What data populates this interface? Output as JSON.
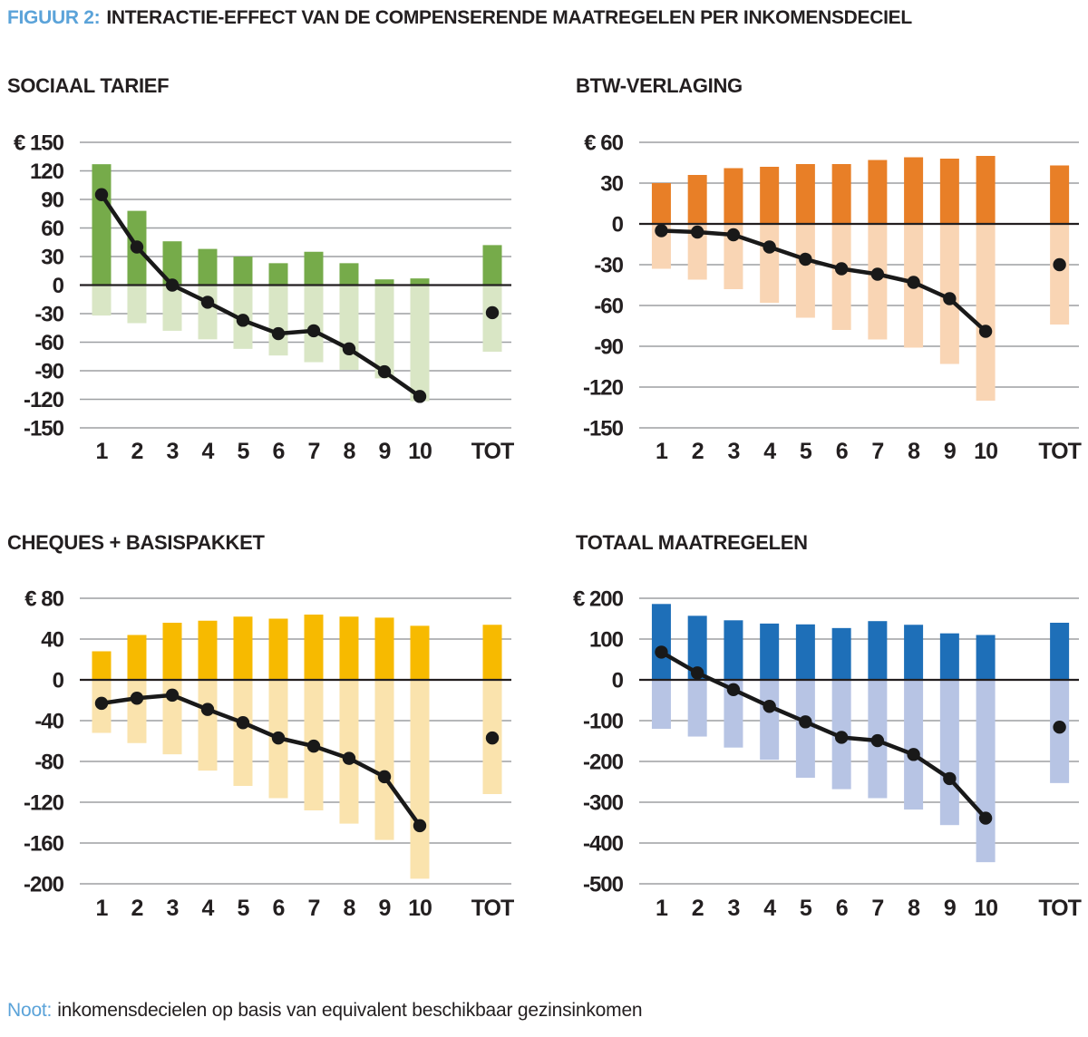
{
  "figure": {
    "label": "FIGUUR 2:",
    "title": "INTERACTIE-EFFECT VAN DE COMPENSERENDE MAATREGELEN PER INKOMENSDECIEL",
    "note": {
      "label": "Noot:",
      "text": "inkomensdecielen op basis van equivalent beschikbaar gezinsinkomen"
    }
  },
  "colors": {
    "accent_blue_text": "#5ba3d9",
    "text_dark": "#231f20",
    "gridline": "#9d9fa2",
    "zero_line": "#231f20",
    "line_and_dots": "#191919"
  },
  "chart_data": [
    {
      "type": "bar",
      "title": "SOCIAAL TARIEF",
      "currency_prefix": "€",
      "categories": [
        "1",
        "2",
        "3",
        "4",
        "5",
        "6",
        "7",
        "8",
        "9",
        "10",
        "TOT"
      ],
      "ylim": [
        -150,
        150
      ],
      "ytick_step": 30,
      "yticks": [
        150,
        120,
        90,
        60,
        30,
        0,
        -30,
        -60,
        -90,
        -120,
        -150
      ],
      "grid": true,
      "legend": false,
      "colors": {
        "positive": "#76ab4a",
        "negative": "#d9e6c5"
      },
      "series": [
        {
          "id": "bars-positive",
          "type": "bar",
          "values": [
            127,
            78,
            46,
            38,
            30,
            23,
            35,
            23,
            6,
            7,
            42
          ]
        },
        {
          "id": "bars-negative",
          "type": "bar",
          "values": [
            -32,
            -40,
            -48,
            -57,
            -67,
            -74,
            -81,
            -89,
            -98,
            -122,
            -70
          ]
        },
        {
          "id": "line-dots",
          "type": "line",
          "values": [
            95,
            40,
            0,
            -18,
            -37,
            -51,
            -48,
            -67,
            -91,
            -117,
            -29
          ]
        }
      ]
    },
    {
      "type": "bar",
      "title": "BTW-VERLAGING",
      "currency_prefix": "€",
      "categories": [
        "1",
        "2",
        "3",
        "4",
        "5",
        "6",
        "7",
        "8",
        "9",
        "10",
        "TOT"
      ],
      "ylim": [
        -150,
        60
      ],
      "ytick_step": 30,
      "yticks": [
        60,
        30,
        0,
        -30,
        -60,
        -90,
        -120,
        -150
      ],
      "grid": true,
      "legend": false,
      "colors": {
        "positive": "#e87f27",
        "negative": "#f9d5b4"
      },
      "series": [
        {
          "id": "bars-positive",
          "type": "bar",
          "values": [
            30,
            36,
            41,
            42,
            44,
            44,
            47,
            49,
            48,
            50,
            43
          ]
        },
        {
          "id": "bars-negative",
          "type": "bar",
          "values": [
            -33,
            -41,
            -48,
            -58,
            -69,
            -78,
            -85,
            -91,
            -103,
            -130,
            -74
          ]
        },
        {
          "id": "line-dots",
          "type": "line",
          "values": [
            -5,
            -6,
            -8,
            -17,
            -26,
            -33,
            -37,
            -43,
            -55,
            -79,
            -30
          ]
        }
      ]
    },
    {
      "type": "bar",
      "title": "CHEQUES + BASISPAKKET",
      "currency_prefix": "€",
      "categories": [
        "1",
        "2",
        "3",
        "4",
        "5",
        "6",
        "7",
        "8",
        "9",
        "10",
        "TOT"
      ],
      "ylim": [
        -200,
        80
      ],
      "ytick_step": 40,
      "yticks": [
        80,
        40,
        0,
        -40,
        -80,
        -120,
        -160,
        -200
      ],
      "grid": true,
      "legend": false,
      "colors": {
        "positive": "#f7ba00",
        "negative": "#fae3ad"
      },
      "series": [
        {
          "id": "bars-positive",
          "type": "bar",
          "values": [
            28,
            44,
            56,
            58,
            62,
            60,
            64,
            62,
            61,
            53,
            54
          ]
        },
        {
          "id": "bars-negative",
          "type": "bar",
          "values": [
            -52,
            -62,
            -73,
            -89,
            -104,
            -116,
            -128,
            -141,
            -157,
            -195,
            -112
          ]
        },
        {
          "id": "line-dots",
          "type": "line",
          "values": [
            -23,
            -18,
            -15,
            -29,
            -42,
            -57,
            -65,
            -77,
            -95,
            -143,
            -57
          ]
        }
      ]
    },
    {
      "type": "bar",
      "title": "TOTAAL MAATREGELEN",
      "currency_prefix": "€",
      "categories": [
        "1",
        "2",
        "3",
        "4",
        "5",
        "6",
        "7",
        "8",
        "9",
        "10",
        "TOT"
      ],
      "ylim": [
        -500,
        200
      ],
      "ytick_step": 100,
      "yticks": [
        200,
        100,
        0,
        -100,
        -200,
        -300,
        -400,
        -500
      ],
      "grid": true,
      "legend": false,
      "colors": {
        "positive": "#1e6fb8",
        "negative": "#b7c4e4"
      },
      "series": [
        {
          "id": "bars-positive",
          "type": "bar",
          "values": [
            186,
            157,
            146,
            138,
            136,
            127,
            144,
            135,
            114,
            110,
            140
          ]
        },
        {
          "id": "bars-negative",
          "type": "bar",
          "values": [
            -120,
            -139,
            -166,
            -196,
            -240,
            -268,
            -290,
            -318,
            -356,
            -447,
            -253
          ]
        },
        {
          "id": "line-dots",
          "type": "line",
          "values": [
            68,
            17,
            -24,
            -65,
            -103,
            -141,
            -149,
            -183,
            -242,
            -339,
            -116
          ]
        }
      ]
    }
  ]
}
